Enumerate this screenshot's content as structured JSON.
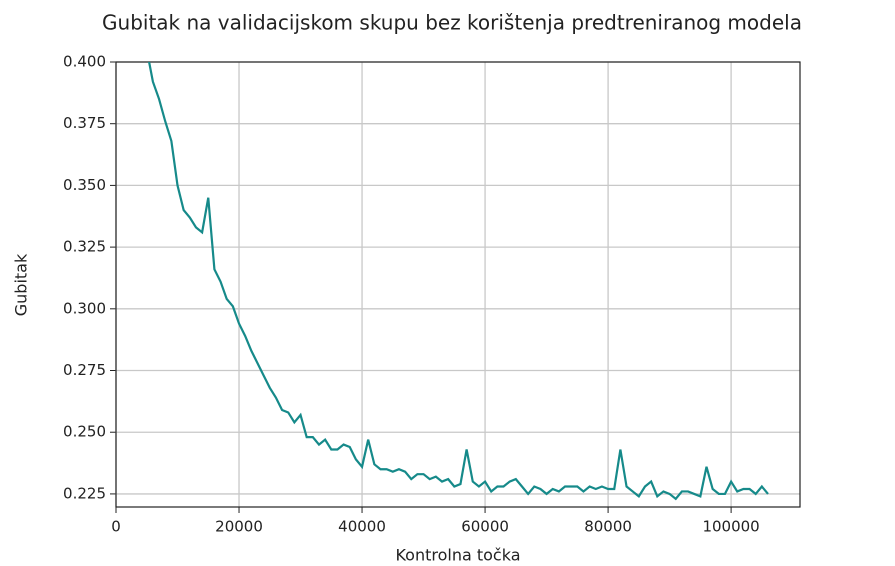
{
  "chart_data": {
    "type": "line",
    "title": "Gubitak na validacijskom skupu  bez korištenja predtreniranog modela",
    "x_label": "Kontrolna točka",
    "y_label": "Gubitak",
    "xlim": [
      0,
      111200
    ],
    "ylim": [
      0.2197,
      0.4
    ],
    "xticks": [
      0,
      20000,
      40000,
      60000,
      80000,
      100000
    ],
    "yticks": [
      {
        "value": 0.225,
        "label": "0.225"
      },
      {
        "value": 0.25,
        "label": "0.250"
      },
      {
        "value": 0.275,
        "label": "0.275"
      },
      {
        "value": 0.3,
        "label": "0.300"
      },
      {
        "value": 0.325,
        "label": "0.325"
      },
      {
        "value": 0.35,
        "label": "0.350"
      },
      {
        "value": 0.375,
        "label": "0.375"
      },
      {
        "value": 0.4,
        "label": "0.400"
      }
    ],
    "grid": true,
    "x": [
      5000,
      6000,
      7000,
      8000,
      9000,
      10000,
      11000,
      12000,
      13000,
      14000,
      15000,
      16000,
      17000,
      18000,
      19000,
      20000,
      21000,
      22000,
      23000,
      24000,
      25000,
      26000,
      27000,
      28000,
      29000,
      30000,
      31000,
      32000,
      33000,
      34000,
      35000,
      36000,
      37000,
      38000,
      39000,
      40000,
      41000,
      42000,
      43000,
      44000,
      45000,
      46000,
      47000,
      48000,
      49000,
      50000,
      51000,
      52000,
      53000,
      54000,
      55000,
      56000,
      57000,
      58000,
      59000,
      60000,
      61000,
      62000,
      63000,
      64000,
      65000,
      66000,
      67000,
      68000,
      69000,
      70000,
      71000,
      72000,
      73000,
      74000,
      75000,
      76000,
      77000,
      78000,
      79000,
      80000,
      81000,
      82000,
      83000,
      84000,
      85000,
      86000,
      87000,
      88000,
      89000,
      90000,
      91000,
      92000,
      93000,
      94000,
      95000,
      96000,
      97000,
      98000,
      99000,
      100000,
      101000,
      102000,
      103000,
      104000,
      105000,
      106000
    ],
    "series": [
      {
        "color": "#168a8a",
        "values": [
          0.405,
          0.392,
          0.385,
          0.376,
          0.368,
          0.35,
          0.34,
          0.337,
          0.333,
          0.331,
          0.345,
          0.316,
          0.311,
          0.304,
          0.301,
          0.294,
          0.289,
          0.283,
          0.278,
          0.273,
          0.268,
          0.264,
          0.259,
          0.258,
          0.254,
          0.257,
          0.248,
          0.248,
          0.245,
          0.247,
          0.243,
          0.243,
          0.245,
          0.244,
          0.239,
          0.236,
          0.247,
          0.237,
          0.235,
          0.235,
          0.234,
          0.235,
          0.234,
          0.231,
          0.233,
          0.233,
          0.231,
          0.232,
          0.23,
          0.231,
          0.228,
          0.229,
          0.243,
          0.23,
          0.228,
          0.23,
          0.226,
          0.228,
          0.228,
          0.23,
          0.231,
          0.228,
          0.225,
          0.228,
          0.227,
          0.225,
          0.227,
          0.226,
          0.228,
          0.228,
          0.228,
          0.226,
          0.228,
          0.227,
          0.228,
          0.227,
          0.227,
          0.243,
          0.228,
          0.226,
          0.224,
          0.228,
          0.23,
          0.224,
          0.226,
          0.225,
          0.223,
          0.226,
          0.226,
          0.225,
          0.224,
          0.236,
          0.227,
          0.225,
          0.225,
          0.23,
          0.226,
          0.227,
          0.227,
          0.225,
          0.228,
          0.225
        ]
      }
    ]
  }
}
